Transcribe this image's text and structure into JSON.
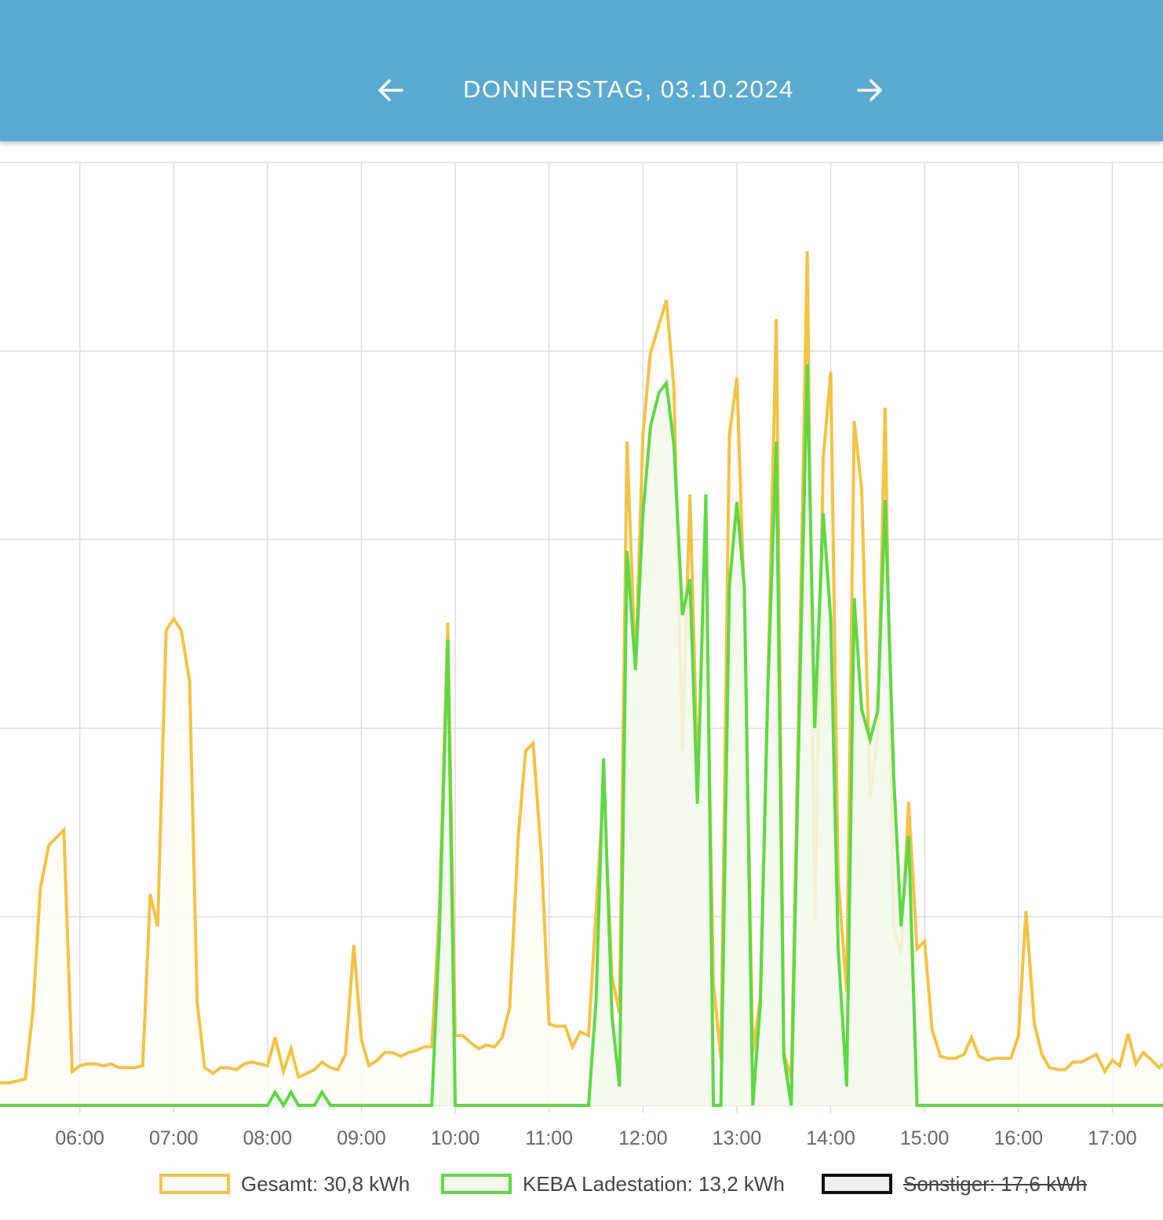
{
  "header": {
    "date_title": "DONNERSTAG, 03.10.2024",
    "prev_icon": "arrow-left-icon",
    "next_icon": "arrow-right-icon",
    "background_color": "#5aaad0"
  },
  "legend": [
    {
      "label": "Gesamt: 30,8 kWh",
      "color": "#f2c344",
      "fill": "#fffdf6",
      "hidden": false
    },
    {
      "label": "KEBA Ladestation: 13,2 kWh",
      "color": "#5fd845",
      "fill": "#f3f9ec",
      "hidden": false
    },
    {
      "label": "Sonstiger: 17,6 kWh",
      "color": "#111111",
      "fill": "#efefef",
      "hidden": true
    }
  ],
  "chart_data": {
    "type": "area",
    "x_unit": "time of day (hours)",
    "xlim": [
      5.15,
      17.54
    ],
    "ylim": [
      0,
      5
    ],
    "grid": true,
    "y_tick_count": 5,
    "x_tick_labels": [
      "06:00",
      "07:00",
      "08:00",
      "09:00",
      "10:00",
      "11:00",
      "12:00",
      "13:00",
      "14:00",
      "15:00",
      "16:00",
      "17:00"
    ],
    "x_tick_values": [
      6,
      7,
      8,
      9,
      10,
      11,
      12,
      13,
      14,
      15,
      16,
      17
    ],
    "partial_edge_label": "0",
    "series": [
      {
        "name": "Gesamt: 30,8 kWh",
        "color": "#f2c344",
        "points": [
          [
            5.15,
            0.12
          ],
          [
            5.17,
            0.12
          ],
          [
            5.25,
            0.12
          ],
          [
            5.42,
            0.14
          ],
          [
            5.5,
            0.5
          ],
          [
            5.58,
            1.15
          ],
          [
            5.67,
            1.38
          ],
          [
            5.75,
            1.42
          ],
          [
            5.83,
            1.46
          ],
          [
            5.92,
            0.18
          ],
          [
            6.0,
            0.21
          ],
          [
            6.08,
            0.22
          ],
          [
            6.17,
            0.22
          ],
          [
            6.25,
            0.21
          ],
          [
            6.33,
            0.22
          ],
          [
            6.42,
            0.2
          ],
          [
            6.5,
            0.2
          ],
          [
            6.58,
            0.2
          ],
          [
            6.67,
            0.21
          ],
          [
            6.75,
            1.12
          ],
          [
            6.83,
            0.95
          ],
          [
            6.92,
            2.52
          ],
          [
            7.0,
            2.58
          ],
          [
            7.08,
            2.52
          ],
          [
            7.17,
            2.25
          ],
          [
            7.25,
            0.55
          ],
          [
            7.33,
            0.2
          ],
          [
            7.42,
            0.17
          ],
          [
            7.5,
            0.2
          ],
          [
            7.58,
            0.2
          ],
          [
            7.67,
            0.19
          ],
          [
            7.75,
            0.22
          ],
          [
            7.83,
            0.23
          ],
          [
            7.92,
            0.22
          ],
          [
            8.0,
            0.21
          ],
          [
            8.08,
            0.36
          ],
          [
            8.17,
            0.18
          ],
          [
            8.25,
            0.3
          ],
          [
            8.33,
            0.15
          ],
          [
            8.42,
            0.17
          ],
          [
            8.5,
            0.19
          ],
          [
            8.58,
            0.23
          ],
          [
            8.67,
            0.2
          ],
          [
            8.75,
            0.19
          ],
          [
            8.83,
            0.27
          ],
          [
            8.92,
            0.85
          ],
          [
            9.0,
            0.35
          ],
          [
            9.08,
            0.21
          ],
          [
            9.17,
            0.24
          ],
          [
            9.25,
            0.28
          ],
          [
            9.33,
            0.28
          ],
          [
            9.42,
            0.26
          ],
          [
            9.5,
            0.28
          ],
          [
            9.58,
            0.29
          ],
          [
            9.67,
            0.31
          ],
          [
            9.75,
            0.31
          ],
          [
            9.83,
            1.02
          ],
          [
            9.92,
            2.56
          ],
          [
            10.0,
            0.37
          ],
          [
            10.08,
            0.37
          ],
          [
            10.17,
            0.33
          ],
          [
            10.25,
            0.3
          ],
          [
            10.33,
            0.32
          ],
          [
            10.42,
            0.31
          ],
          [
            10.5,
            0.36
          ],
          [
            10.58,
            0.52
          ],
          [
            10.67,
            1.42
          ],
          [
            10.75,
            1.88
          ],
          [
            10.83,
            1.92
          ],
          [
            10.92,
            1.3
          ],
          [
            11.0,
            0.43
          ],
          [
            11.08,
            0.42
          ],
          [
            11.17,
            0.42
          ],
          [
            11.25,
            0.31
          ],
          [
            11.33,
            0.39
          ],
          [
            11.42,
            0.37
          ],
          [
            11.58,
            1.68
          ],
          [
            11.67,
            0.68
          ],
          [
            11.75,
            0.49
          ],
          [
            11.83,
            3.52
          ],
          [
            11.92,
            2.3
          ],
          [
            12.0,
            3.56
          ],
          [
            12.08,
            3.99
          ],
          [
            12.17,
            4.14
          ],
          [
            12.25,
            4.27
          ],
          [
            12.33,
            3.8
          ],
          [
            12.42,
            1.88
          ],
          [
            12.5,
            3.24
          ],
          [
            12.58,
            1.78
          ],
          [
            12.67,
            2.76
          ],
          [
            12.75,
            0.65
          ],
          [
            12.83,
            0.25
          ],
          [
            12.92,
            3.55
          ],
          [
            13.0,
            3.86
          ],
          [
            13.08,
            2.65
          ],
          [
            13.17,
            0.28
          ],
          [
            13.25,
            0.57
          ],
          [
            13.33,
            2.2
          ],
          [
            13.42,
            4.17
          ],
          [
            13.5,
            0.28
          ],
          [
            13.58,
            0.14
          ],
          [
            13.67,
            2.4
          ],
          [
            13.75,
            4.53
          ],
          [
            13.83,
            0.98
          ],
          [
            13.92,
            3.43
          ],
          [
            14.0,
            3.89
          ],
          [
            14.08,
            1.2
          ],
          [
            14.17,
            0.6
          ],
          [
            14.25,
            3.63
          ],
          [
            14.33,
            3.27
          ],
          [
            14.42,
            1.64
          ],
          [
            14.5,
            1.96
          ],
          [
            14.58,
            3.7
          ],
          [
            14.67,
            0.95
          ],
          [
            14.75,
            0.8
          ],
          [
            14.83,
            1.61
          ],
          [
            14.92,
            0.83
          ],
          [
            15.0,
            0.87
          ],
          [
            15.08,
            0.4
          ],
          [
            15.17,
            0.26
          ],
          [
            15.25,
            0.25
          ],
          [
            15.33,
            0.25
          ],
          [
            15.42,
            0.27
          ],
          [
            15.5,
            0.36
          ],
          [
            15.58,
            0.26
          ],
          [
            15.67,
            0.24
          ],
          [
            15.75,
            0.25
          ],
          [
            15.83,
            0.25
          ],
          [
            15.92,
            0.25
          ],
          [
            16.0,
            0.37
          ],
          [
            16.08,
            1.03
          ],
          [
            16.17,
            0.43
          ],
          [
            16.25,
            0.27
          ],
          [
            16.33,
            0.2
          ],
          [
            16.42,
            0.19
          ],
          [
            16.5,
            0.19
          ],
          [
            16.58,
            0.23
          ],
          [
            16.67,
            0.23
          ],
          [
            16.75,
            0.25
          ],
          [
            16.83,
            0.27
          ],
          [
            16.92,
            0.18
          ],
          [
            17.0,
            0.24
          ],
          [
            17.08,
            0.21
          ],
          [
            17.17,
            0.38
          ],
          [
            17.25,
            0.22
          ],
          [
            17.33,
            0.28
          ],
          [
            17.42,
            0.24
          ],
          [
            17.5,
            0.2
          ],
          [
            17.54,
            0.22
          ]
        ]
      },
      {
        "name": "KEBA Ladestation: 13,2 kWh",
        "color": "#5fd845",
        "points": [
          [
            5.15,
            0
          ],
          [
            8.0,
            0
          ],
          [
            8.08,
            0.07
          ],
          [
            8.17,
            0
          ],
          [
            8.25,
            0.07
          ],
          [
            8.33,
            0
          ],
          [
            8.5,
            0
          ],
          [
            8.58,
            0.07
          ],
          [
            8.67,
            0
          ],
          [
            9.75,
            0
          ],
          [
            9.83,
            0.9
          ],
          [
            9.92,
            2.47
          ],
          [
            10.0,
            0
          ],
          [
            11.42,
            0
          ],
          [
            11.5,
            0.55
          ],
          [
            11.58,
            1.84
          ],
          [
            11.67,
            0.47
          ],
          [
            11.75,
            0.1
          ],
          [
            11.83,
            2.94
          ],
          [
            11.92,
            2.31
          ],
          [
            12.0,
            3.14
          ],
          [
            12.08,
            3.6
          ],
          [
            12.17,
            3.78
          ],
          [
            12.25,
            3.83
          ],
          [
            12.33,
            3.5
          ],
          [
            12.42,
            2.6
          ],
          [
            12.5,
            2.79
          ],
          [
            12.58,
            1.6
          ],
          [
            12.67,
            3.24
          ],
          [
            12.75,
            0
          ],
          [
            12.83,
            0
          ],
          [
            12.92,
            2.75
          ],
          [
            13.0,
            3.2
          ],
          [
            13.08,
            2.75
          ],
          [
            13.17,
            0
          ],
          [
            13.25,
            0.54
          ],
          [
            13.33,
            2.2
          ],
          [
            13.42,
            3.52
          ],
          [
            13.5,
            0.26
          ],
          [
            13.58,
            0
          ],
          [
            13.67,
            2.2
          ],
          [
            13.75,
            3.93
          ],
          [
            13.83,
            2.0
          ],
          [
            13.92,
            3.14
          ],
          [
            14.0,
            2.58
          ],
          [
            14.08,
            0.83
          ],
          [
            14.17,
            0.1
          ],
          [
            14.25,
            2.69
          ],
          [
            14.33,
            2.1
          ],
          [
            14.42,
            1.94
          ],
          [
            14.5,
            2.09
          ],
          [
            14.58,
            3.21
          ],
          [
            14.67,
            1.76
          ],
          [
            14.75,
            0.95
          ],
          [
            14.83,
            1.43
          ],
          [
            14.92,
            0
          ],
          [
            17.54,
            0
          ]
        ]
      }
    ]
  }
}
